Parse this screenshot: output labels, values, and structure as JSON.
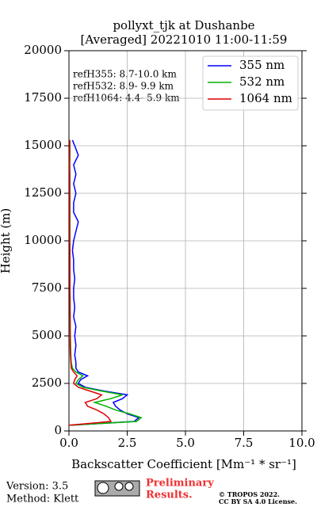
{
  "chart_data": {
    "type": "line",
    "title": "pollyxt_tjk at Dushanbe",
    "subtitle": "[Averaged] 20221010 11:00-11:59",
    "xlabel": "Backscatter Coefficient [Mm⁻¹ * sr⁻¹]",
    "ylabel": "Height (m)",
    "annotations": [
      "refH355:  8.7-10.0 km",
      "refH532:  8.9- 9.9 km",
      "refH1064:  4.4- 5.9 km"
    ],
    "xlim": [
      0,
      10
    ],
    "xticks": [
      {
        "value": 0,
        "label": "0.0"
      },
      {
        "value": 2.5,
        "label": "2.5"
      },
      {
        "value": 5,
        "label": "5.0"
      },
      {
        "value": 7.5,
        "label": "7.5"
      },
      {
        "value": 10,
        "label": "10.0"
      }
    ],
    "ylim": [
      0,
      20000
    ],
    "yticks": [
      0,
      2500,
      5000,
      7500,
      10000,
      12500,
      15000,
      17500,
      20000
    ],
    "grid": true,
    "legend": "upper right",
    "heights": [
      300,
      500,
      700,
      900,
      1100,
      1300,
      1500,
      1700,
      1900,
      2100,
      2300,
      2500,
      2700,
      2900,
      3100,
      3300,
      3600,
      4000,
      4500,
      5000,
      5500,
      6000,
      6500,
      7000,
      7500,
      8000,
      8500,
      9000,
      9500,
      10000,
      10500,
      11000,
      11500,
      12000,
      12500,
      13000,
      13500,
      14000,
      14500,
      15000,
      15300
    ],
    "series": [
      {
        "name": "355 nm",
        "color": "#0000ff",
        "values": [
          0.1,
          2.8,
          3.0,
          2.5,
          2.2,
          2.0,
          1.9,
          2.3,
          2.5,
          1.5,
          0.7,
          0.4,
          0.5,
          0.8,
          0.4,
          0.3,
          0.3,
          0.25,
          0.3,
          0.25,
          0.3,
          0.2,
          0.25,
          0.2,
          0.2,
          0.25,
          0.2,
          0.2,
          0.15,
          0.2,
          0.3,
          0.4,
          0.2,
          0.2,
          0.3,
          0.2,
          0.3,
          0.2,
          0.4,
          0.25,
          0.15
        ]
      },
      {
        "name": "532 nm",
        "color": "#00b000",
        "values": [
          0.05,
          2.9,
          3.1,
          2.6,
          2.0,
          1.6,
          1.1,
          1.8,
          2.3,
          1.4,
          0.6,
          0.3,
          0.4,
          0.6,
          0.3,
          0.15,
          0.1,
          0.08,
          0.07,
          0.06,
          0.05,
          0.05,
          0.05,
          0.05,
          0.04,
          0.04,
          0.04,
          0.04,
          0.04,
          0.04,
          0.04,
          0.04,
          0.04,
          0.04,
          0.04,
          0.04,
          0.04,
          0.03,
          0.04,
          0.04,
          0.04
        ]
      },
      {
        "name": "1064 nm",
        "color": "#e00000",
        "values": [
          0.0,
          1.8,
          1.7,
          1.5,
          1.2,
          0.8,
          0.7,
          1.2,
          1.4,
          0.9,
          0.4,
          0.2,
          0.25,
          0.35,
          0.2,
          0.1,
          0.08,
          0.06,
          0.05,
          0.05,
          0.05,
          0.05,
          0.04,
          0.04,
          0.04,
          0.04,
          0.04,
          0.04,
          0.04,
          0.03,
          0.03,
          0.03,
          0.03,
          0.03,
          0.03,
          0.03,
          0.03,
          0.03,
          0.03,
          0.03,
          0.03
        ]
      }
    ]
  },
  "footer": {
    "version": "Version: 3.5",
    "method": "Method: Klett",
    "preliminary": "Preliminary",
    "results": "Results.",
    "copyright": "© TROPOS 2022.",
    "license": "CC BY SA 4.0 License."
  }
}
